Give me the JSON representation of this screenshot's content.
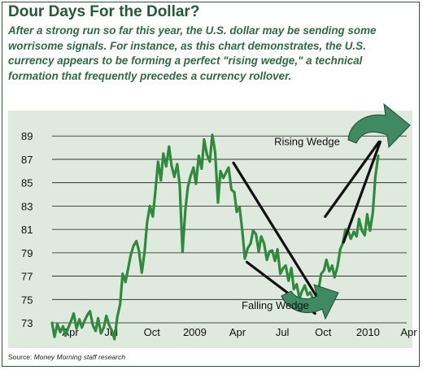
{
  "title": "Dour Days For the Dollar?",
  "subtitle": "After a strong run so far this year, the U.S. dollar may be sending some worrisome signals. For instance, as this chart demonstrates, the U.S. currency appears to be forming a perfect \"rising wedge,\" a technical formation that frequently precedes a currency rollover.",
  "source": {
    "prefix": "Source: ",
    "name": "Money Morning staff research"
  },
  "colors": {
    "title": "#1f5a3a",
    "line": "#2f8a3e",
    "plot_bg": "#dfe9dd",
    "arrow": "#3f8a62"
  },
  "chart_data": {
    "type": "line",
    "title": "",
    "xlabel": "",
    "ylabel": "",
    "ylim": [
      71.4,
      90.2
    ],
    "yticks": [
      73,
      75,
      77,
      79,
      81,
      83,
      85,
      87,
      89
    ],
    "xlim": [
      0,
      87
    ],
    "xticks": [
      {
        "label": "Apr",
        "x": 4.5
      },
      {
        "label": "Jul",
        "x": 14.5
      },
      {
        "label": "Oct",
        "x": 24.5
      },
      {
        "label": "2009",
        "x": 35
      },
      {
        "label": "Apr",
        "x": 45.5
      },
      {
        "label": "Jul",
        "x": 56.5
      },
      {
        "label": "Oct",
        "x": 66.5
      },
      {
        "label": "2010",
        "x": 77.5
      },
      {
        "label": "Apr",
        "x": 87.5
      }
    ],
    "grid": true,
    "series": [
      {
        "name": "",
        "points": [
          [
            0,
            73
          ],
          [
            0.6,
            71.8
          ],
          [
            1.3,
            72.9
          ],
          [
            2,
            72.2
          ],
          [
            2.7,
            72.7
          ],
          [
            3.3,
            71.9
          ],
          [
            4,
            72.6
          ],
          [
            4.7,
            73.2
          ],
          [
            5.3,
            73.8
          ],
          [
            6,
            72.5
          ],
          [
            6.7,
            73.3
          ],
          [
            7.3,
            72.6
          ],
          [
            8,
            73.2
          ],
          [
            8.7,
            73.7
          ],
          [
            9.3,
            74
          ],
          [
            10,
            72.8
          ],
          [
            10.7,
            72.3
          ],
          [
            11.3,
            73.4
          ],
          [
            12,
            72.1
          ],
          [
            12.7,
            72.6
          ],
          [
            13.3,
            73.6
          ],
          [
            14,
            72.8
          ],
          [
            14.7,
            72.3
          ],
          [
            15.3,
            71.6
          ],
          [
            16,
            73.5
          ],
          [
            16.7,
            74.6
          ],
          [
            17.3,
            77.2
          ],
          [
            18,
            76.5
          ],
          [
            18.7,
            77.7
          ],
          [
            19.3,
            78.8
          ],
          [
            20,
            79.6
          ],
          [
            20.7,
            80
          ],
          [
            21.3,
            79.2
          ],
          [
            22,
            77.3
          ],
          [
            22.7,
            79.1
          ],
          [
            23.3,
            81.6
          ],
          [
            24,
            83
          ],
          [
            24.7,
            82.1
          ],
          [
            25.3,
            84.1
          ],
          [
            26,
            86.8
          ],
          [
            26.7,
            85.2
          ],
          [
            27.3,
            87.5
          ],
          [
            28,
            86.4
          ],
          [
            28.7,
            88.1
          ],
          [
            29.3,
            86.5
          ],
          [
            30,
            85.5
          ],
          [
            30.7,
            86.6
          ],
          [
            31.3,
            84.8
          ],
          [
            32,
            79.1
          ],
          [
            32.7,
            82.7
          ],
          [
            33.3,
            84.6
          ],
          [
            34,
            85.6
          ],
          [
            34.7,
            86.3
          ],
          [
            35.3,
            84.9
          ],
          [
            36,
            87.3
          ],
          [
            36.7,
            86.2
          ],
          [
            37.3,
            88.7
          ],
          [
            38,
            87.4
          ],
          [
            38.7,
            86.8
          ],
          [
            39.3,
            89.1
          ],
          [
            40,
            87.6
          ],
          [
            40.7,
            83.3
          ],
          [
            41.3,
            86
          ],
          [
            42,
            85.4
          ],
          [
            42.7,
            85.9
          ],
          [
            43.3,
            86.3
          ],
          [
            44,
            84.4
          ],
          [
            44.7,
            84.2
          ],
          [
            45.3,
            82.5
          ],
          [
            46,
            82.9
          ],
          [
            46.7,
            80.8
          ],
          [
            47.3,
            78.5
          ],
          [
            48,
            79.4
          ],
          [
            48.7,
            79.8
          ],
          [
            49.3,
            80.9
          ],
          [
            50,
            80.6
          ],
          [
            50.7,
            79.1
          ],
          [
            51.3,
            80.4
          ],
          [
            52,
            79.8
          ],
          [
            52.7,
            78.4
          ],
          [
            53.3,
            79.1
          ],
          [
            54,
            79.2
          ],
          [
            54.7,
            78.3
          ],
          [
            55.3,
            79.3
          ],
          [
            56,
            77.2
          ],
          [
            56.7,
            77.7
          ],
          [
            57.3,
            77.9
          ],
          [
            58,
            76.6
          ],
          [
            58.7,
            77.7
          ],
          [
            59.3,
            75.9
          ],
          [
            60,
            76.3
          ],
          [
            60.7,
            75.1
          ],
          [
            61.3,
            75.7
          ],
          [
            62,
            76.2
          ],
          [
            62.7,
            75.4
          ],
          [
            63.3,
            75.6
          ],
          [
            64,
            75.1
          ],
          [
            64.7,
            74.3
          ],
          [
            65.3,
            75.7
          ],
          [
            66,
            77.2
          ],
          [
            66.7,
            77.5
          ],
          [
            67.3,
            78.4
          ],
          [
            68,
            77.4
          ],
          [
            68.7,
            77.9
          ],
          [
            69.3,
            76.9
          ],
          [
            70,
            77.8
          ],
          [
            70.7,
            79.3
          ],
          [
            71.3,
            79.8
          ],
          [
            72,
            81
          ],
          [
            72.7,
            80.8
          ],
          [
            73.3,
            80.2
          ],
          [
            74,
            80.8
          ],
          [
            74.7,
            80.4
          ],
          [
            75.3,
            81.9
          ],
          [
            76,
            80.9
          ],
          [
            76.7,
            80.5
          ],
          [
            77.3,
            82.3
          ],
          [
            78,
            80.9
          ],
          [
            78.7,
            82.5
          ],
          [
            79.3,
            85.5
          ],
          [
            80,
            87.3
          ]
        ]
      }
    ],
    "wedge_lines": [
      {
        "name": "falling-wedge-upper",
        "from": [
          44.5,
          86.7
        ],
        "to": [
          65,
          75.2
        ]
      },
      {
        "name": "falling-wedge-lower",
        "from": [
          47.8,
          78.2
        ],
        "to": [
          64.5,
          73.8
        ]
      },
      {
        "name": "rising-wedge-upper",
        "from": [
          67,
          82.1
        ],
        "to": [
          80.2,
          88.5
        ]
      },
      {
        "name": "rising-wedge-lower",
        "from": [
          71.5,
          79.9
        ],
        "to": [
          80.5,
          88.5
        ]
      }
    ],
    "annotations": [
      {
        "name": "rising-wedge-label",
        "text": "Rising Wedge",
        "x": 54.5,
        "y": 88.2
      },
      {
        "name": "falling-wedge-label",
        "text": "Falling Wedge",
        "x": 46.5,
        "y": 74.2
      }
    ]
  }
}
